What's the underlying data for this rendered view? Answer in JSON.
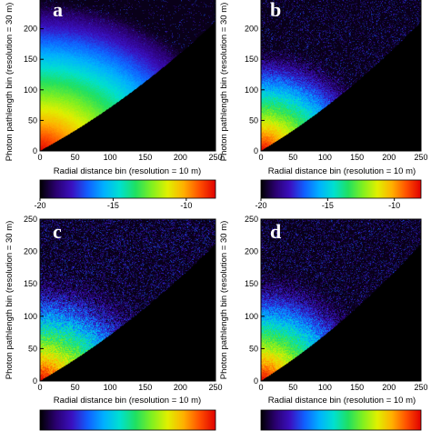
{
  "colors": {
    "background_region": "#000000",
    "colormap": [
      "#000000",
      "#2a0070",
      "#3a10c0",
      "#1060ff",
      "#00b0ff",
      "#00e0d0",
      "#20e060",
      "#80f020",
      "#e0f000",
      "#ffb000",
      "#ff5000",
      "#e00000"
    ]
  },
  "chart_data": [
    {
      "type": "heatmap",
      "panel": "a",
      "xlabel": "Radial distance bin (resolution = 10 m)",
      "ylabel": "Photon pathlength bin (resolution = 30 m)",
      "xlim": [
        0,
        250
      ],
      "ylim": [
        0,
        250
      ],
      "xticks": [
        "0",
        "50",
        "100",
        "150",
        "200",
        "250"
      ],
      "yticks": [
        "0",
        "50",
        "100",
        "150",
        "200"
      ],
      "colorbar": {
        "range": [
          -20,
          -8
        ],
        "ticks": [
          "-20",
          "-15",
          "-10"
        ]
      },
      "spread": 1.15,
      "noise": 0.02
    },
    {
      "type": "heatmap",
      "panel": "b",
      "xlabel": "Radial distance bin (resolution = 10 m)",
      "ylabel": "Photon pathlength bin (resolution = 30 m)",
      "xlim": [
        0,
        250
      ],
      "ylim": [
        0,
        250
      ],
      "xticks": [
        "0",
        "50",
        "100",
        "150",
        "200",
        "250"
      ],
      "yticks": [
        "0",
        "50",
        "100",
        "150",
        "200"
      ],
      "colorbar": {
        "range": [
          -20,
          -8
        ],
        "ticks": [
          "-20",
          "-15",
          "-10"
        ]
      },
      "spread": 0.75,
      "noise": 0.06
    },
    {
      "type": "heatmap",
      "panel": "c",
      "xlabel": "Radial distance bin (resolution = 10 m)",
      "ylabel": "Photon pathlength bin (resolution = 30 m)",
      "xlim": [
        0,
        250
      ],
      "ylim": [
        0,
        250
      ],
      "xticks": [
        "0",
        "50",
        "100",
        "150",
        "200",
        "250"
      ],
      "yticks": [
        "0",
        "50",
        "100",
        "150",
        "200",
        "250"
      ],
      "spread": 0.7,
      "noise": 0.1
    },
    {
      "type": "heatmap",
      "panel": "d",
      "xlabel": "Radial distance bin (resolution = 10 m)",
      "ylabel": "Photon pathlength bin (resolution = 30 m)",
      "xlim": [
        0,
        250
      ],
      "ylim": [
        0,
        250
      ],
      "xticks": [
        "0",
        "50",
        "100",
        "150",
        "200",
        "250"
      ],
      "yticks": [
        "0",
        "50",
        "100",
        "150",
        "200",
        "250"
      ],
      "spread": 0.72,
      "noise": 0.08
    }
  ]
}
